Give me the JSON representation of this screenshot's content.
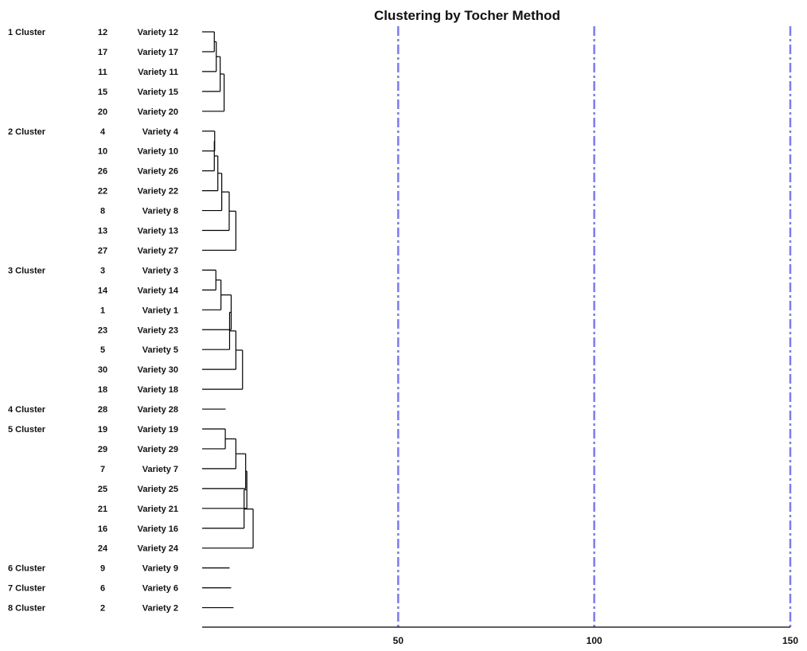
{
  "chart_data": {
    "type": "dendrogram",
    "title": "Clustering by Tocher Method",
    "xlabel": "",
    "ylabel": "",
    "xlim": [
      0,
      150
    ],
    "x_ticks": [
      50,
      100,
      150
    ],
    "grid_style": "dash-dot",
    "colors": {
      "grid": "#7b7bf0",
      "lines": "#000000",
      "text": "#111111"
    },
    "clusters": [
      {
        "label": "1 Cluster",
        "leaves": [
          {
            "id": "12",
            "name": "Variety 12"
          },
          {
            "id": "17",
            "name": "Variety 17"
          },
          {
            "id": "11",
            "name": "Variety 11"
          },
          {
            "id": "15",
            "name": "Variety 15"
          },
          {
            "id": "20",
            "name": "Variety 20"
          }
        ],
        "merge_heights": [
          3.1,
          3.6,
          4.6,
          5.6
        ]
      },
      {
        "label": "2 Cluster",
        "leaves": [
          {
            "id": "4",
            "name": "Variety 4"
          },
          {
            "id": "10",
            "name": "Variety 10"
          },
          {
            "id": "26",
            "name": "Variety 26"
          },
          {
            "id": "22",
            "name": "Variety 22"
          },
          {
            "id": "8",
            "name": "Variety 8"
          },
          {
            "id": "13",
            "name": "Variety 13"
          },
          {
            "id": "27",
            "name": "Variety 27"
          }
        ],
        "merge_heights": [
          3.2,
          3.1,
          4.0,
          5.0,
          6.9,
          8.6
        ]
      },
      {
        "label": "3 Cluster",
        "leaves": [
          {
            "id": "3",
            "name": "Variety 3"
          },
          {
            "id": "14",
            "name": "Variety 14"
          },
          {
            "id": "1",
            "name": "Variety 1"
          },
          {
            "id": "23",
            "name": "Variety 23"
          },
          {
            "id": "5",
            "name": "Variety 5"
          },
          {
            "id": "30",
            "name": "Variety 30"
          },
          {
            "id": "18",
            "name": "Variety 18"
          }
        ],
        "merge_heights": [
          3.5,
          4.8,
          7.4,
          7.0,
          8.6,
          10.3
        ]
      },
      {
        "label": "4 Cluster",
        "leaves": [
          {
            "id": "28",
            "name": "Variety 28"
          }
        ],
        "merge_heights": [],
        "stub_length": 6.0
      },
      {
        "label": "5 Cluster",
        "leaves": [
          {
            "id": "19",
            "name": "Variety 19"
          },
          {
            "id": "29",
            "name": "Variety 29"
          },
          {
            "id": "7",
            "name": "Variety 7"
          },
          {
            "id": "25",
            "name": "Variety 25"
          },
          {
            "id": "21",
            "name": "Variety 21"
          },
          {
            "id": "16",
            "name": "Variety 16"
          },
          {
            "id": "24",
            "name": "Variety 24"
          }
        ],
        "merge_heights": [
          5.9,
          8.6,
          11.1,
          11.4,
          10.7,
          13.0
        ]
      },
      {
        "label": "6 Cluster",
        "leaves": [
          {
            "id": "9",
            "name": "Variety 9"
          }
        ],
        "merge_heights": [],
        "stub_length": 7.0
      },
      {
        "label": "7 Cluster",
        "leaves": [
          {
            "id": "6",
            "name": "Variety 6"
          }
        ],
        "merge_heights": [],
        "stub_length": 7.4
      },
      {
        "label": "8 Cluster",
        "leaves": [
          {
            "id": "2",
            "name": "Variety 2"
          }
        ],
        "merge_heights": [],
        "stub_length": 8.0
      }
    ]
  }
}
